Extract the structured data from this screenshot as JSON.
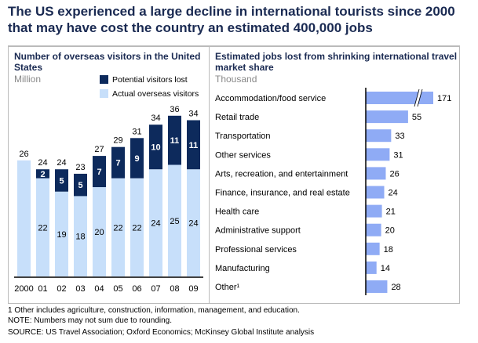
{
  "title": "The US experienced a large decline in international tourists since 2000 that may have cost the country an estimated 400,000 jobs",
  "colors": {
    "lost": "#0d2a5c",
    "actual": "#c7dffa",
    "jobs": "#8fabf5"
  },
  "chart_data": [
    {
      "type": "bar",
      "stacked": true,
      "title": "Number of overseas visitors in the United States",
      "unit": "Million",
      "categories": [
        "2000",
        "01",
        "02",
        "03",
        "04",
        "05",
        "06",
        "07",
        "08",
        "09"
      ],
      "series": [
        {
          "name": "Actual overseas visitors",
          "values": [
            26,
            22,
            19,
            18,
            20,
            22,
            22,
            24,
            25,
            24
          ]
        },
        {
          "name": "Potential visitors lost",
          "values": [
            null,
            2,
            5,
            5,
            7,
            7,
            9,
            10,
            11,
            11
          ]
        }
      ],
      "totals": [
        26,
        24,
        24,
        23,
        27,
        29,
        31,
        34,
        36,
        34
      ],
      "legend": [
        "Potential visitors lost",
        "Actual overseas visitors"
      ]
    },
    {
      "type": "bar",
      "orientation": "horizontal",
      "title": "Estimated jobs lost from shrinking international travel market share",
      "unit": "Thousand",
      "axis_break_on": "Accommodation/food service",
      "categories": [
        "Accommodation/food service",
        "Retail trade",
        "Transportation",
        "Other services",
        "Arts, recreation, and entertainment",
        "Finance, insurance, and real estate",
        "Health care",
        "Administrative support",
        "Professional services",
        "Manufacturing",
        "Other¹"
      ],
      "values": [
        171,
        55,
        33,
        31,
        26,
        24,
        21,
        20,
        18,
        14,
        28
      ]
    }
  ],
  "footnotes": [
    "1 Other includes agriculture, construction, information, management, and education.",
    "NOTE: Numbers may not sum due to rounding.",
    "SOURCE: US Travel Association; Oxford Economics; McKinsey Global Institute analysis"
  ]
}
